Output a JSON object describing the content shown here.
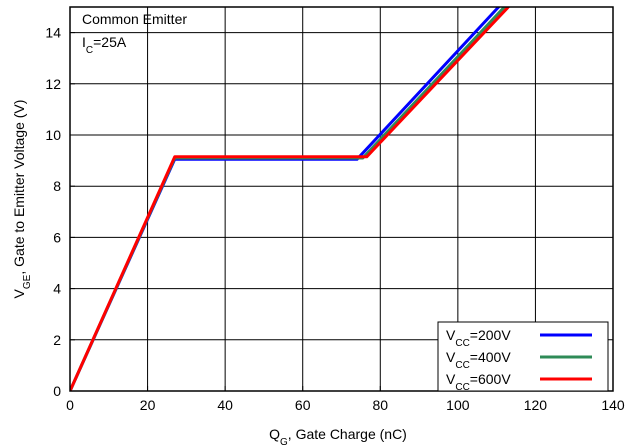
{
  "chart_data": {
    "type": "line",
    "title": "",
    "xlabel": {
      "main": "Q",
      "sub": "G",
      "rest": ", Gate Charge (nC)"
    },
    "ylabel": {
      "main": "V",
      "sub": "GE",
      "rest": ", Gate to Emitter Voltage (V)"
    },
    "xlim": [
      0,
      140
    ],
    "ylim": [
      0,
      15
    ],
    "xticks": [
      0,
      20,
      40,
      60,
      80,
      100,
      120,
      140
    ],
    "yticks": [
      0,
      2,
      4,
      6,
      8,
      10,
      12,
      14
    ],
    "grid": true,
    "legend_position": "bottom-right",
    "annotations": {
      "line1": "Common Emitter",
      "line2": {
        "main": "I",
        "sub": "C",
        "rest": "=25A"
      }
    },
    "series": [
      {
        "name": "VCC=200V",
        "label": {
          "main": "V",
          "sub": "CC",
          "rest": "=200V"
        },
        "color": "#0000ff",
        "x": [
          0,
          27,
          74,
          110.5
        ],
        "y": [
          0,
          9.05,
          9.05,
          15
        ]
      },
      {
        "name": "VCC=400V",
        "label": {
          "main": "V",
          "sub": "CC",
          "rest": "=400V"
        },
        "color": "#2e8b57",
        "x": [
          0,
          27,
          75.5,
          112
        ],
        "y": [
          0,
          9.1,
          9.1,
          15
        ]
      },
      {
        "name": "VCC=600V",
        "label": {
          "main": "V",
          "sub": "CC",
          "rest": "=600V"
        },
        "color": "#ff0000",
        "x": [
          0,
          27,
          76.5,
          113
        ],
        "y": [
          0,
          9.15,
          9.15,
          15
        ]
      }
    ]
  }
}
